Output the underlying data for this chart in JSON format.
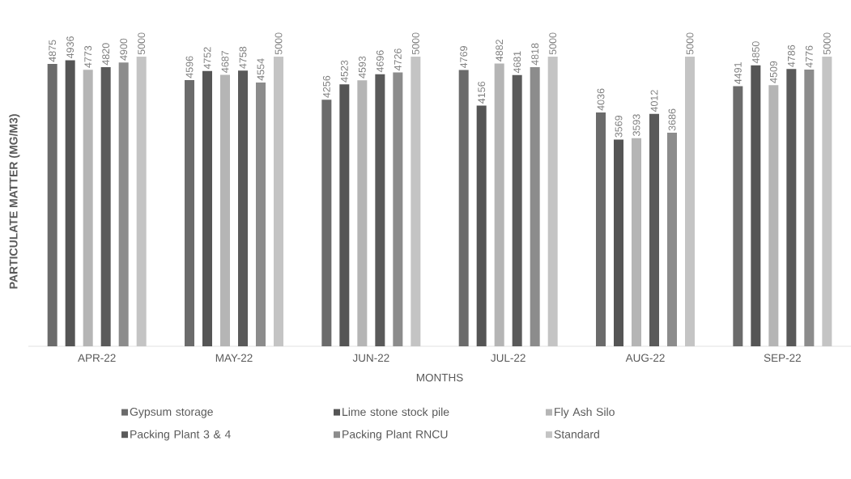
{
  "chart_data": {
    "type": "bar",
    "xlabel": "MONTHS",
    "ylabel": "PARTICULATE MATTER (MG/M3)",
    "categories": [
      "APR-22",
      "MAY-22",
      "JUN-22",
      "JUL-22",
      "AUG-22",
      "SEP-22"
    ],
    "series": [
      {
        "name": "Gypsum storage",
        "color": "#6b6b6b",
        "values": [
          4875,
          4596,
          4256,
          4769,
          4036,
          4491
        ]
      },
      {
        "name": "Lime stone stock pile",
        "color": "#555555",
        "values": [
          4936,
          4752,
          4523,
          4156,
          3569,
          4850
        ]
      },
      {
        "name": "Fly Ash Silo",
        "color": "#b5b5b5",
        "values": [
          4773,
          4687,
          4593,
          4882,
          3593,
          4509
        ]
      },
      {
        "name": "Packing Plant 3 & 4",
        "color": "#5a5a5a",
        "values": [
          4820,
          4758,
          4696,
          4681,
          4012,
          4786
        ]
      },
      {
        "name": "Packing Plant RNCU",
        "color": "#8c8c8c",
        "values": [
          4900,
          4554,
          4726,
          4818,
          3686,
          4776
        ]
      },
      {
        "name": "Standard",
        "color": "#c4c4c4",
        "values": [
          5000,
          5000,
          5000,
          5000,
          5000,
          5000
        ]
      }
    ],
    "ylim": [
      0,
      5000
    ],
    "data_labels": true,
    "legend": "bottom"
  }
}
